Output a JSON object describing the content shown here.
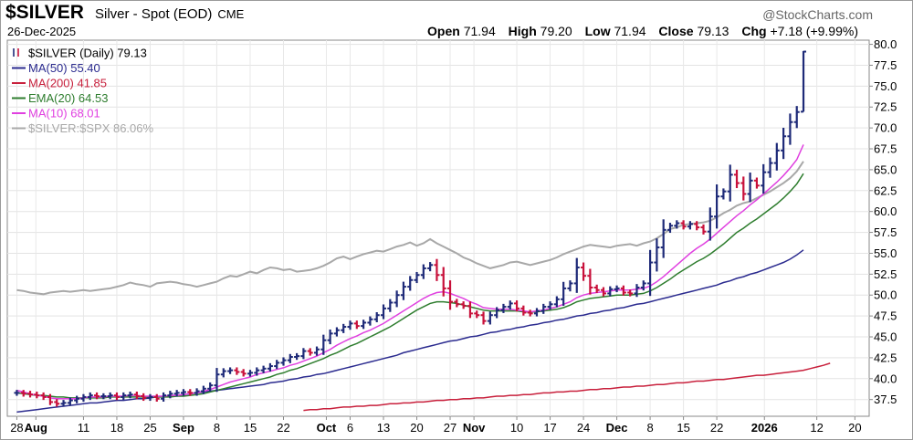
{
  "header": {
    "symbol": "$SILVER",
    "company": "Silver - Spot (EOD)",
    "exchange": "CME",
    "date": "26-Dec-2025",
    "watermark": "@StockCharts.com",
    "open_label": "Open",
    "open": "71.94",
    "high_label": "High",
    "high": "79.20",
    "low_label": "Low",
    "low": "71.94",
    "close_label": "Close",
    "close": "79.13",
    "chg_label": "Chg",
    "chg": "+7.18 (+9.99%)"
  },
  "legend": [
    {
      "label": "$SILVER (Daily) 79.13",
      "color": "#000000",
      "icon": "bar-icon"
    },
    {
      "label": "MA(50) 55.40",
      "color": "#2b2b8f",
      "icon": "line"
    },
    {
      "label": "MA(200) 41.85",
      "color": "#c8203c",
      "icon": "line"
    },
    {
      "label": "EMA(20) 64.53",
      "color": "#2e7d2e",
      "icon": "line"
    },
    {
      "label": "MA(10) 68.01",
      "color": "#e040e0",
      "icon": "line"
    },
    {
      "label": "$SILVER:$SPX 86.06%",
      "color": "#a8a8a8",
      "icon": "line"
    }
  ],
  "colors": {
    "up": "#1e2a78",
    "down": "#c8103a",
    "ma50": "#2b2b8f",
    "ma200": "#c8203c",
    "ema20": "#2e7d2e",
    "ma10": "#e040e0",
    "ratio": "#a8a8a8"
  },
  "chart_data": {
    "type": "bar",
    "subtype": "ohlc",
    "ylim": [
      35.5,
      80.5
    ],
    "yticks": [
      37.5,
      40.0,
      42.5,
      45.0,
      47.5,
      50.0,
      52.5,
      55.0,
      57.5,
      60.0,
      62.5,
      65.0,
      67.5,
      70.0,
      72.5,
      75.0,
      77.5,
      80.0
    ],
    "ytick_labels": [
      "37.5",
      "40.0",
      "42.5",
      "45.0",
      "47.5",
      "50.0",
      "52.5",
      "55.0",
      "57.5",
      "60.0",
      "62.5",
      "65.0",
      "67.5",
      "70.0",
      "72.5",
      "75.0",
      "77.5",
      "80.0"
    ],
    "x_ticks": [
      {
        "label": "28",
        "day": -4,
        "month": false
      },
      {
        "label": "Aug",
        "day": 0,
        "month": true
      },
      {
        "label": "11",
        "day": 10,
        "month": false
      },
      {
        "label": "18",
        "day": 17,
        "month": false
      },
      {
        "label": "25",
        "day": 24,
        "month": false
      },
      {
        "label": "Sep",
        "day": 31,
        "month": true
      },
      {
        "label": "8",
        "day": 38,
        "month": false
      },
      {
        "label": "15",
        "day": 45,
        "month": false
      },
      {
        "label": "22",
        "day": 52,
        "month": false
      },
      {
        "label": "Oct",
        "day": 61,
        "month": true
      },
      {
        "label": "6",
        "day": 66,
        "month": false
      },
      {
        "label": "13",
        "day": 73,
        "month": false
      },
      {
        "label": "20",
        "day": 80,
        "month": false
      },
      {
        "label": "27",
        "day": 87,
        "month": false
      },
      {
        "label": "Nov",
        "day": 92,
        "month": true
      },
      {
        "label": "10",
        "day": 101,
        "month": false
      },
      {
        "label": "17",
        "day": 108,
        "month": false
      },
      {
        "label": "24",
        "day": 115,
        "month": false
      },
      {
        "label": "Dec",
        "day": 122,
        "month": true
      },
      {
        "label": "8",
        "day": 129,
        "month": false
      },
      {
        "label": "15",
        "day": 136,
        "month": false
      },
      {
        "label": "22",
        "day": 143,
        "month": false
      },
      {
        "label": "2026",
        "day": 153,
        "month": true
      },
      {
        "label": "12",
        "day": 164,
        "month": false
      },
      {
        "label": "20",
        "day": 172,
        "month": false
      }
    ],
    "x_range_days": [
      -6,
      175
    ],
    "bars_day_start": -4,
    "close": [
      38.3,
      38.2,
      38.1,
      38.0,
      37.8,
      37.2,
      37.0,
      37.1,
      37.4,
      37.6,
      37.8,
      38.0,
      37.9,
      37.9,
      38.0,
      37.8,
      38.0,
      38.1,
      37.9,
      37.7,
      37.8,
      37.6,
      38.0,
      38.2,
      38.3,
      38.4,
      38.3,
      38.5,
      38.8,
      39.2,
      40.5,
      40.9,
      41.0,
      40.8,
      40.6,
      40.7,
      41.0,
      41.2,
      41.5,
      41.9,
      42.2,
      42.6,
      42.7,
      43.3,
      43.1,
      43.5,
      44.6,
      45.4,
      45.8,
      46.2,
      46.6,
      46.3,
      46.7,
      47.1,
      47.6,
      48.4,
      49.1,
      50.0,
      51.0,
      51.8,
      52.4,
      53.2,
      53.6,
      52.4,
      50.8,
      49.2,
      48.9,
      48.7,
      47.8,
      47.6,
      46.9,
      47.6,
      48.2,
      48.6,
      49.0,
      48.4,
      47.9,
      47.8,
      48.1,
      48.6,
      48.9,
      49.5,
      50.8,
      51.4,
      53.3,
      52.3,
      50.9,
      50.6,
      50.2,
      50.7,
      50.8,
      50.3,
      50.2,
      50.9,
      51.4,
      53.9,
      55.7,
      57.8,
      58.3,
      58.6,
      58.2,
      58.5,
      58.1,
      57.6,
      59.4,
      61.8,
      62.4,
      64.4,
      63.4,
      62.1,
      63.7,
      63.1,
      64.7,
      65.8,
      67.3,
      69.0,
      70.7,
      71.9,
      79.13
    ],
    "ma10": [
      38.6,
      38.4,
      38.2,
      38.0,
      37.9,
      37.7,
      37.6,
      37.6,
      37.6,
      37.6,
      37.7,
      37.8,
      37.8,
      37.8,
      37.9,
      37.9,
      37.9,
      38.0,
      38.0,
      37.9,
      37.9,
      37.9,
      37.9,
      38.0,
      38.0,
      38.1,
      38.2,
      38.3,
      38.5,
      38.7,
      39.0,
      39.3,
      39.6,
      39.8,
      40.0,
      40.2,
      40.5,
      40.7,
      40.9,
      41.1,
      41.3,
      41.6,
      41.8,
      42.1,
      42.4,
      42.7,
      43.1,
      43.5,
      44.0,
      44.4,
      44.8,
      45.1,
      45.5,
      45.8,
      46.2,
      46.6,
      47.1,
      47.6,
      48.1,
      48.6,
      49.1,
      49.6,
      50.0,
      50.3,
      50.4,
      50.2,
      49.9,
      49.6,
      49.2,
      48.9,
      48.5,
      48.4,
      48.3,
      48.3,
      48.3,
      48.2,
      48.1,
      48.0,
      48.1,
      48.2,
      48.4,
      48.6,
      48.9,
      49.2,
      49.7,
      50.0,
      50.2,
      50.3,
      50.4,
      50.5,
      50.6,
      50.6,
      50.6,
      50.7,
      50.8,
      51.1,
      51.6,
      52.2,
      52.9,
      53.6,
      54.3,
      55.0,
      55.6,
      56.1,
      56.7,
      57.4,
      58.1,
      58.8,
      59.5,
      60.1,
      60.8,
      61.4,
      62.1,
      62.8,
      63.5,
      64.3,
      65.2,
      66.2,
      68.01
    ],
    "ema20": [
      38.3,
      38.2,
      38.1,
      38.0,
      38.0,
      37.9,
      37.8,
      37.8,
      37.7,
      37.7,
      37.7,
      37.7,
      37.7,
      37.7,
      37.8,
      37.8,
      37.8,
      37.8,
      37.8,
      37.8,
      37.8,
      37.8,
      37.8,
      37.8,
      37.9,
      37.9,
      38.0,
      38.1,
      38.2,
      38.4,
      38.6,
      38.8,
      39.0,
      39.2,
      39.4,
      39.6,
      39.8,
      40.0,
      40.2,
      40.5,
      40.7,
      41.0,
      41.2,
      41.5,
      41.8,
      42.1,
      42.4,
      42.8,
      43.1,
      43.5,
      43.9,
      44.2,
      44.6,
      45.0,
      45.4,
      45.8,
      46.2,
      46.7,
      47.2,
      47.7,
      48.2,
      48.6,
      49.0,
      49.2,
      49.2,
      49.1,
      49.0,
      48.8,
      48.6,
      48.4,
      48.2,
      48.1,
      48.1,
      48.1,
      48.1,
      48.1,
      48.0,
      48.0,
      48.0,
      48.1,
      48.2,
      48.3,
      48.5,
      48.8,
      49.2,
      49.4,
      49.6,
      49.7,
      49.8,
      49.9,
      50.0,
      50.0,
      50.0,
      50.1,
      50.2,
      50.5,
      50.9,
      51.4,
      51.9,
      52.5,
      53.0,
      53.5,
      54.0,
      54.4,
      54.9,
      55.5,
      56.1,
      56.8,
      57.5,
      58.0,
      58.6,
      59.1,
      59.7,
      60.3,
      60.9,
      61.6,
      62.4,
      63.3,
      64.53
    ],
    "ma50": [
      36.0,
      36.1,
      36.2,
      36.3,
      36.4,
      36.5,
      36.6,
      36.7,
      36.8,
      36.9,
      37.0,
      37.1,
      37.1,
      37.2,
      37.3,
      37.4,
      37.4,
      37.5,
      37.6,
      37.6,
      37.7,
      37.8,
      37.9,
      37.9,
      38.0,
      38.1,
      38.2,
      38.3,
      38.4,
      38.5,
      38.6,
      38.7,
      38.8,
      38.9,
      39.0,
      39.1,
      39.2,
      39.3,
      39.5,
      39.6,
      39.7,
      39.9,
      40.0,
      40.2,
      40.3,
      40.5,
      40.6,
      40.8,
      41.0,
      41.2,
      41.4,
      41.6,
      41.8,
      42.0,
      42.2,
      42.4,
      42.6,
      42.8,
      43.1,
      43.3,
      43.5,
      43.7,
      43.9,
      44.1,
      44.3,
      44.5,
      44.6,
      44.8,
      45.0,
      45.1,
      45.3,
      45.5,
      45.6,
      45.8,
      45.9,
      46.1,
      46.2,
      46.4,
      46.5,
      46.7,
      46.8,
      47.0,
      47.1,
      47.3,
      47.5,
      47.6,
      47.8,
      47.9,
      48.1,
      48.2,
      48.4,
      48.5,
      48.7,
      48.9,
      49.0,
      49.2,
      49.4,
      49.6,
      49.8,
      50.0,
      50.2,
      50.4,
      50.6,
      50.8,
      51.0,
      51.2,
      51.5,
      51.7,
      52.0,
      52.2,
      52.5,
      52.7,
      53.0,
      53.3,
      53.6,
      53.9,
      54.3,
      54.8,
      55.4
    ],
    "ma200_start_index": 43,
    "ma200": [
      36.2,
      36.3,
      36.3,
      36.4,
      36.4,
      36.5,
      36.6,
      36.6,
      36.7,
      36.7,
      36.8,
      36.8,
      36.9,
      37.0,
      37.0,
      37.1,
      37.1,
      37.2,
      37.2,
      37.3,
      37.4,
      37.4,
      37.5,
      37.5,
      37.6,
      37.6,
      37.7,
      37.7,
      37.8,
      37.9,
      37.9,
      38.0,
      38.0,
      38.1,
      38.1,
      38.2,
      38.3,
      38.3,
      38.4,
      38.4,
      38.5,
      38.5,
      38.6,
      38.7,
      38.7,
      38.8,
      38.8,
      38.9,
      39.0,
      39.0,
      39.1,
      39.1,
      39.2,
      39.3,
      39.3,
      39.4,
      39.5,
      39.5,
      39.6,
      39.7,
      39.7,
      39.8,
      39.9,
      39.9,
      40.0,
      40.1,
      40.2,
      40.3,
      40.4,
      40.4,
      40.5,
      40.6,
      40.7,
      40.8,
      40.9,
      41.0,
      41.2,
      41.4,
      41.6,
      41.85
    ],
    "ratio": [
      50.6,
      50.5,
      50.3,
      50.2,
      50.1,
      50.3,
      50.4,
      50.5,
      50.4,
      50.5,
      50.6,
      50.5,
      50.6,
      50.7,
      50.8,
      51.0,
      51.2,
      51.5,
      51.3,
      51.2,
      51.0,
      51.4,
      51.5,
      51.6,
      51.5,
      51.3,
      51.2,
      51.0,
      51.2,
      51.4,
      51.6,
      52.0,
      52.3,
      52.2,
      52.5,
      52.8,
      52.6,
      53.0,
      53.3,
      53.2,
      53.0,
      53.1,
      52.8,
      52.9,
      53.0,
      53.2,
      53.5,
      53.9,
      54.4,
      54.6,
      54.3,
      54.6,
      54.9,
      55.1,
      55.3,
      55.2,
      55.5,
      55.8,
      56.0,
      56.3,
      55.9,
      56.2,
      56.7,
      56.2,
      55.8,
      55.4,
      55.0,
      54.5,
      54.2,
      53.8,
      53.5,
      53.2,
      53.4,
      53.6,
      53.9,
      54.0,
      53.8,
      53.6,
      53.8,
      54.0,
      54.2,
      54.5,
      54.9,
      55.2,
      55.5,
      55.8,
      56.0,
      55.9,
      55.8,
      55.7,
      55.9,
      56.0,
      56.1,
      55.9,
      56.2,
      56.4,
      56.8,
      57.3,
      57.9,
      58.1,
      58.4,
      58.5,
      58.6,
      58.7,
      58.9,
      59.3,
      59.8,
      60.2,
      60.7,
      61.0,
      61.2,
      61.6,
      62.0,
      62.4,
      62.9,
      63.4,
      64.0,
      64.8,
      66.0
    ]
  }
}
